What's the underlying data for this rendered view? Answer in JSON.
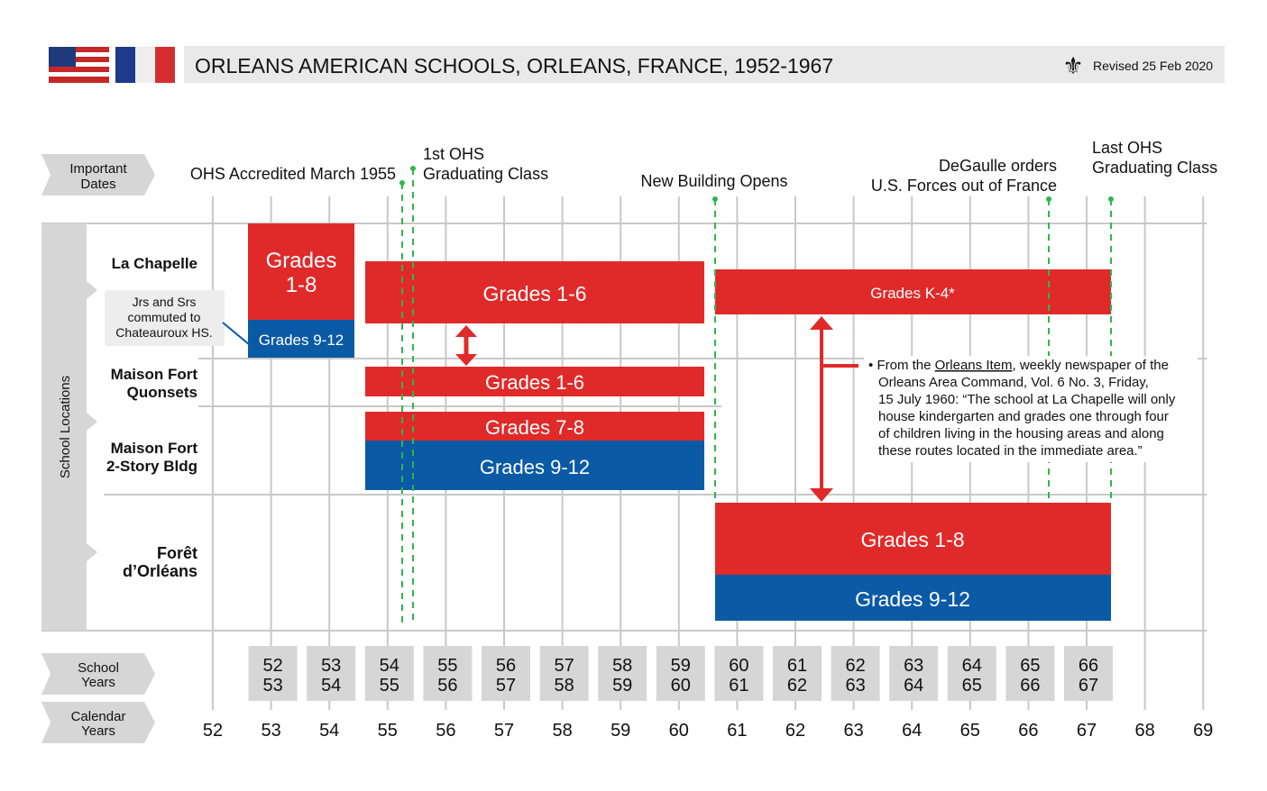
{
  "header": {
    "title": "ORLEANS AMERICAN SCHOOLS, ORLEANS, FRANCE, 1952-1967",
    "revised": "Revised 25 Feb 2020",
    "icons": [
      "us-flag-icon",
      "french-flag-icon",
      "fleur-de-lis-icon"
    ]
  },
  "row_labels": {
    "important_dates": [
      "Important",
      "Dates"
    ],
    "school_locations": "School Locations",
    "school_years": [
      "School",
      "Years"
    ],
    "calendar_years": [
      "Calendar",
      "Years"
    ]
  },
  "important_dates": {
    "accredited": "OHS Accredited March 1955",
    "first_class": [
      "1st OHS",
      "Graduating Class"
    ],
    "new_building": "New Building Opens",
    "degaulle": [
      "DeGaulle orders",
      "U.S. Forces out of France"
    ],
    "last_class": [
      "Last OHS",
      "Graduating Class"
    ]
  },
  "locations": {
    "la_chapelle": "La Chapelle",
    "quonsets": [
      "Maison Fort",
      "Quonsets"
    ],
    "two_story": [
      "Maison Fort",
      "2-Story Bldg"
    ],
    "foret": [
      "Forêt",
      "d’Orléans"
    ]
  },
  "callout": [
    "Jrs and Srs",
    "commuted to",
    "Chateauroux HS."
  ],
  "bars": {
    "lc_1_8": [
      "Grades",
      "1-8"
    ],
    "lc_9_12": "Grades 9-12",
    "lc_1_6": "Grades 1-6",
    "lc_k_4": "Grades K-4*",
    "q_1_6": "Grades 1-6",
    "ms_7_8": "Grades 7-8",
    "ms_9_12": "Grades 9-12",
    "f_1_8": "Grades 1-8",
    "f_9_12": "Grades 9-12"
  },
  "note": {
    "bullet": "•",
    "pre": "From the ",
    "link": "Orleans Item",
    "post": ", weekly newspaper of the",
    "lines": [
      "Orleans Area Command, Vol. 6 No. 3, Friday,",
      "15 July 1960: “The school at La Chapelle will only",
      "house kindergarten and grades one through four",
      "of children living in the housing areas and along",
      "these routes located in the immediate area.”"
    ]
  },
  "school_years": [
    [
      "52",
      "53"
    ],
    [
      "53",
      "54"
    ],
    [
      "54",
      "55"
    ],
    [
      "55",
      "56"
    ],
    [
      "56",
      "57"
    ],
    [
      "57",
      "58"
    ],
    [
      "58",
      "59"
    ],
    [
      "59",
      "60"
    ],
    [
      "60",
      "61"
    ],
    [
      "61",
      "62"
    ],
    [
      "62",
      "63"
    ],
    [
      "63",
      "64"
    ],
    [
      "64",
      "65"
    ],
    [
      "65",
      "66"
    ],
    [
      "66",
      "67"
    ]
  ],
  "calendar_years": [
    "52",
    "53",
    "54",
    "55",
    "56",
    "57",
    "58",
    "59",
    "60",
    "61",
    "62",
    "63",
    "64",
    "65",
    "66",
    "67",
    "68",
    "69"
  ],
  "colors": {
    "red": "#e02a2a",
    "blue": "#0a5aa5",
    "green": "#2db84a",
    "grid": "#c8c8c8",
    "panel": "#d6d6d6"
  }
}
